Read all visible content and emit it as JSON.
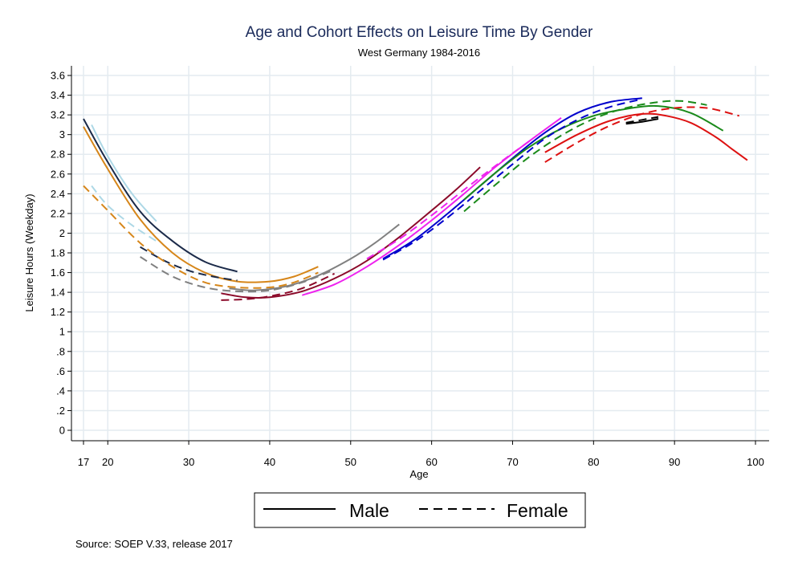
{
  "chart_data": {
    "type": "line",
    "title": "Age and Cohort Effects on Leisure Time By Gender",
    "subtitle": "West Germany 1984-2016",
    "xlabel": "Age",
    "ylabel": "Leisure Hours (Weekday)",
    "xlim": [
      17,
      100
    ],
    "ylim": [
      0,
      3.6
    ],
    "xticks": [
      17,
      20,
      30,
      40,
      50,
      60,
      70,
      80,
      90,
      100
    ],
    "yticks": [
      0,
      0.2,
      0.4,
      0.6,
      0.8,
      1,
      1.2,
      1.4,
      1.6,
      1.8,
      2,
      2.2,
      2.4,
      2.6,
      2.8,
      3,
      3.2,
      3.4,
      3.6
    ],
    "ytick_labels": [
      "0",
      ".2",
      ".4",
      ".6",
      ".8",
      "1",
      "1.2",
      "1.4",
      "1.6",
      "1.8",
      "2",
      "2.2",
      "2.4",
      "2.6",
      "2.8",
      "3",
      "3.2",
      "3.4",
      "3.6"
    ],
    "grid": true,
    "legend": {
      "position": "bottom",
      "entries": [
        {
          "label": "Male",
          "style": "solid"
        },
        {
          "label": "Female",
          "style": "dashed"
        }
      ]
    },
    "source": "Source: SOEP V.33, release 2017",
    "series": [
      {
        "color": "#1b2a49",
        "style": "solid",
        "x": [
          17,
          20,
          24,
          28,
          32,
          36
        ],
        "y": [
          3.16,
          2.72,
          2.22,
          1.92,
          1.71,
          1.61
        ]
      },
      {
        "color": "#add8e6",
        "style": "solid",
        "x": [
          18,
          20,
          23,
          26
        ],
        "y": [
          3.1,
          2.78,
          2.4,
          2.12
        ]
      },
      {
        "color": "#d6861a",
        "style": "solid",
        "x": [
          17,
          20,
          24,
          28,
          32,
          36,
          40,
          43,
          46
        ],
        "y": [
          3.08,
          2.65,
          2.14,
          1.8,
          1.6,
          1.51,
          1.51,
          1.56,
          1.66
        ]
      },
      {
        "color": "#808080",
        "style": "solid",
        "x": [
          35,
          38,
          42,
          46,
          50,
          53,
          56
        ],
        "y": [
          1.44,
          1.42,
          1.46,
          1.57,
          1.74,
          1.9,
          2.09
        ]
      },
      {
        "color": "#8b0a2a",
        "style": "solid",
        "x": [
          34,
          37,
          40,
          44,
          48,
          52,
          56,
          60,
          63,
          66
        ],
        "y": [
          1.39,
          1.35,
          1.35,
          1.41,
          1.54,
          1.72,
          1.96,
          2.23,
          2.44,
          2.67
        ]
      },
      {
        "color": "#ee22ee",
        "style": "solid",
        "x": [
          44,
          48,
          52,
          56,
          60,
          64,
          68,
          72,
          76
        ],
        "y": [
          1.37,
          1.48,
          1.66,
          1.88,
          2.13,
          2.4,
          2.68,
          2.93,
          3.17
        ]
      },
      {
        "color": "#0000cc",
        "style": "solid",
        "x": [
          54,
          58,
          62,
          66,
          70,
          74,
          78,
          82,
          86
        ],
        "y": [
          1.74,
          1.94,
          2.2,
          2.48,
          2.76,
          3.02,
          3.22,
          3.33,
          3.37
        ]
      },
      {
        "color": "#1a8a1a",
        "style": "solid",
        "x": [
          64,
          68,
          72,
          76,
          80,
          84,
          88,
          92,
          96
        ],
        "y": [
          2.34,
          2.62,
          2.87,
          3.06,
          3.19,
          3.26,
          3.29,
          3.22,
          3.04
        ]
      },
      {
        "color": "#dd1111",
        "style": "solid",
        "x": [
          74,
          78,
          82,
          86,
          89,
          92,
          95,
          97,
          99
        ],
        "y": [
          2.82,
          3.0,
          3.14,
          3.21,
          3.19,
          3.12,
          2.98,
          2.86,
          2.74
        ]
      },
      {
        "color": "#000000",
        "style": "solid",
        "x": [
          84,
          86,
          88
        ],
        "y": [
          3.11,
          3.13,
          3.16
        ]
      },
      {
        "color": "#1b2a49",
        "style": "dashed",
        "x": [
          24,
          27,
          30,
          33,
          36
        ],
        "y": [
          1.86,
          1.72,
          1.62,
          1.56,
          1.52
        ]
      },
      {
        "color": "#add8e6",
        "style": "dashed",
        "x": [
          18,
          20,
          23,
          26
        ],
        "y": [
          2.48,
          2.28,
          2.08,
          1.92
        ]
      },
      {
        "color": "#d6861a",
        "style": "dashed",
        "x": [
          17,
          20,
          24,
          28,
          32,
          36,
          40,
          43,
          46
        ],
        "y": [
          2.48,
          2.23,
          1.9,
          1.66,
          1.5,
          1.45,
          1.45,
          1.5,
          1.6
        ]
      },
      {
        "color": "#808080",
        "style": "dashed",
        "x": [
          24,
          28,
          32,
          36,
          40,
          44,
          48
        ],
        "y": [
          1.76,
          1.56,
          1.45,
          1.41,
          1.42,
          1.5,
          1.63
        ]
      },
      {
        "color": "#8b0a2a",
        "style": "dashed",
        "x": [
          34,
          37,
          40,
          44,
          48
        ],
        "y": [
          1.32,
          1.33,
          1.36,
          1.44,
          1.59
        ]
      },
      {
        "color": "#ee22ee",
        "style": "dashed",
        "x": [
          52,
          56,
          60,
          64,
          68,
          72
        ],
        "y": [
          1.74,
          1.94,
          2.18,
          2.44,
          2.69,
          2.93
        ]
      },
      {
        "color": "#0000cc",
        "style": "dashed",
        "x": [
          54,
          58,
          62,
          66,
          70,
          74,
          78,
          82,
          86
        ],
        "y": [
          1.73,
          1.92,
          2.16,
          2.43,
          2.7,
          2.96,
          3.15,
          3.28,
          3.36
        ]
      },
      {
        "color": "#1a8a1a",
        "style": "dashed",
        "x": [
          64,
          68,
          72,
          76,
          80,
          84,
          88,
          91,
          94
        ],
        "y": [
          2.22,
          2.5,
          2.77,
          2.99,
          3.16,
          3.27,
          3.33,
          3.34,
          3.3
        ]
      },
      {
        "color": "#dd1111",
        "style": "dashed",
        "x": [
          74,
          78,
          82,
          86,
          90,
          94,
          98
        ],
        "y": [
          2.72,
          2.92,
          3.09,
          3.21,
          3.27,
          3.27,
          3.19
        ]
      },
      {
        "color": "#000000",
        "style": "dashed",
        "x": [
          84,
          86,
          88
        ],
        "y": [
          3.12,
          3.15,
          3.18
        ]
      }
    ]
  }
}
